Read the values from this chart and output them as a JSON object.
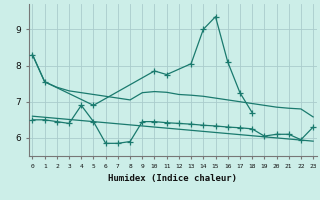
{
  "xlabel": "Humidex (Indice chaleur)",
  "background_color": "#cceee8",
  "grid_color": "#aacccc",
  "line_color": "#1a7a6e",
  "x_values": [
    0,
    1,
    2,
    3,
    4,
    5,
    6,
    7,
    8,
    9,
    10,
    11,
    12,
    13,
    14,
    15,
    16,
    17,
    18,
    19,
    20,
    21,
    22,
    23
  ],
  "series1": [
    8.3,
    7.55,
    7.4,
    7.3,
    7.25,
    7.2,
    7.15,
    7.1,
    7.05,
    7.25,
    7.28,
    7.26,
    7.2,
    7.18,
    7.15,
    7.1,
    7.05,
    7.0,
    6.95,
    6.9,
    6.85,
    6.82,
    6.8,
    6.58
  ],
  "series2_x": [
    0,
    1,
    5,
    10,
    11,
    13,
    14,
    15,
    16,
    17,
    18
  ],
  "series2_y": [
    8.3,
    7.55,
    6.9,
    7.85,
    7.75,
    8.05,
    9.0,
    9.35,
    8.1,
    7.25,
    6.7
  ],
  "series3": [
    6.5,
    6.5,
    6.45,
    6.4,
    6.9,
    6.45,
    5.85,
    5.85,
    5.9,
    6.45,
    6.45,
    6.42,
    6.4,
    6.38,
    6.35,
    6.33,
    6.3,
    6.28,
    6.25,
    6.05,
    6.1,
    6.1,
    5.95,
    6.3
  ],
  "series4_slope": [
    6.6,
    6.57,
    6.54,
    6.51,
    6.48,
    6.45,
    6.42,
    6.39,
    6.36,
    6.33,
    6.3,
    6.27,
    6.24,
    6.21,
    6.18,
    6.15,
    6.12,
    6.09,
    6.06,
    6.03,
    6.0,
    5.97,
    5.94,
    5.91
  ],
  "ylim": [
    5.5,
    9.7
  ],
  "yticks": [
    6,
    7,
    8,
    9
  ],
  "xticks": [
    0,
    1,
    2,
    3,
    4,
    5,
    6,
    7,
    8,
    9,
    10,
    11,
    12,
    13,
    14,
    15,
    16,
    17,
    18,
    19,
    20,
    21,
    22,
    23
  ]
}
